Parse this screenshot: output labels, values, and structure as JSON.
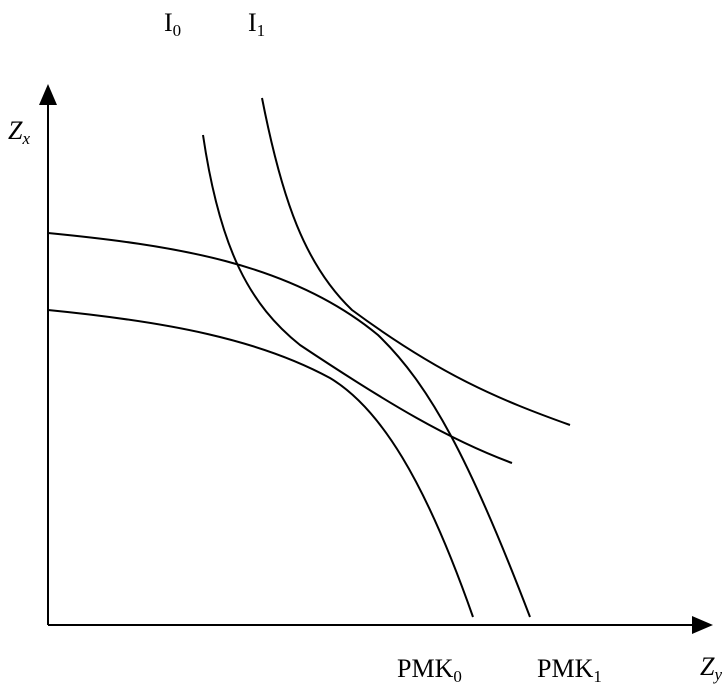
{
  "labels": {
    "i0_main": "I",
    "i0_sub": "0",
    "i1_main": "I",
    "i1_sub": "1",
    "pmk0_main": "PMK",
    "pmk0_sub": "0",
    "pmk1_main": "PMK",
    "pmk1_sub": "1",
    "zx_main": "Z",
    "zx_sub": "x",
    "zy_main": "Z",
    "zy_sub": "y"
  },
  "colors": {
    "line": "#000000",
    "background": "#ffffff"
  }
}
